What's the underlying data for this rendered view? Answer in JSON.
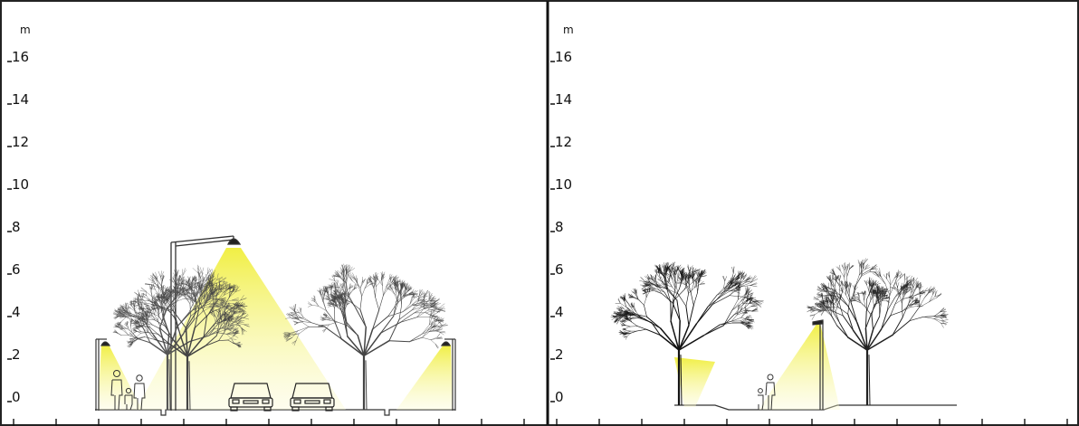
{
  "panels": [
    {
      "id": "left",
      "unit": "m",
      "ticks": [
        "16",
        "14",
        "12",
        "10",
        "8",
        "6",
        "4",
        "2",
        "0"
      ]
    },
    {
      "id": "right",
      "unit": "m",
      "ticks": [
        "16",
        "14",
        "12",
        "10",
        "8",
        "6",
        "4",
        "2",
        "0"
      ]
    }
  ],
  "colors": {
    "frame": "#222222",
    "divider": "#111111",
    "light": "#f2f07a"
  }
}
